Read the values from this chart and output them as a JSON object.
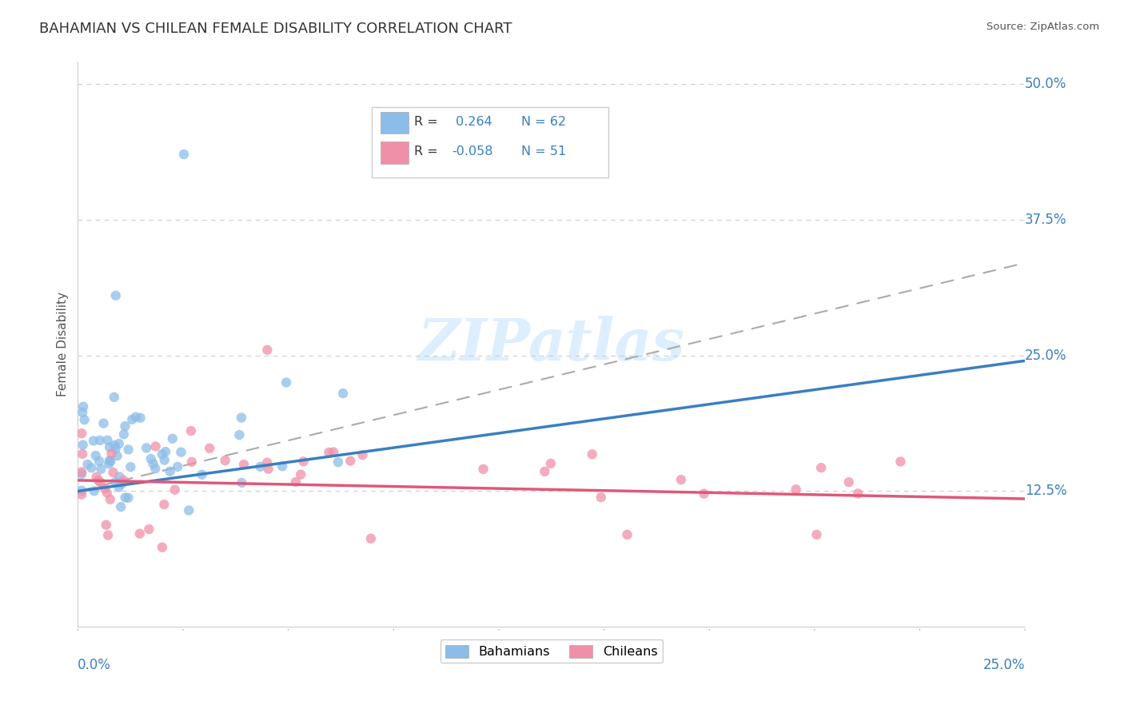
{
  "title": "BAHAMIAN VS CHILEAN FEMALE DISABILITY CORRELATION CHART",
  "source": "Source: ZipAtlas.com",
  "ylabel": "Female Disability",
  "xlim": [
    0.0,
    0.25
  ],
  "ylim": [
    -0.02,
    0.55
  ],
  "plot_ylim": [
    0.0,
    0.52
  ],
  "ytick_vals": [
    0.125,
    0.25,
    0.375,
    0.5
  ],
  "ytick_labels": [
    "12.5%",
    "25.0%",
    "37.5%",
    "50.0%"
  ],
  "bahamian_color": "#8bbde8",
  "chilean_color": "#f090a8",
  "bahamian_line_color": "#3a7fc1",
  "chilean_line_color": "#e05878",
  "dash_line_color": "#aaaaaa",
  "grid_color": "#cccccc",
  "bg_color": "#ffffff",
  "legend_r1": "R =  0.264",
  "legend_n1": "N = 62",
  "legend_r2": "R = -0.058",
  "legend_n2": "N = 51",
  "bah_line_x0": 0.0,
  "bah_line_y0": 0.125,
  "bah_line_x1": 0.25,
  "bah_line_y1": 0.245,
  "chi_line_x0": 0.0,
  "chi_line_y0": 0.135,
  "chi_line_x1": 0.25,
  "chi_line_y1": 0.118,
  "dash_line_x0": 0.0,
  "dash_line_y0": 0.125,
  "dash_line_x1": 0.25,
  "dash_line_y1": 0.335
}
